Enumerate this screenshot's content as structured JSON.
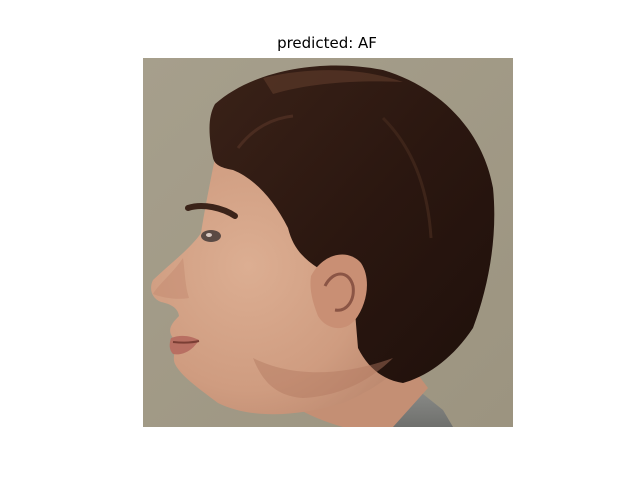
{
  "figure": {
    "title": "predicted: AF"
  },
  "photo": {
    "subject": "face-profile",
    "colors": {
      "background": "#a59c88",
      "skin": "#d2a185",
      "skin_shadow": "#b47a61",
      "hair": "#2a1710",
      "hair_highlight": "#4b2d21",
      "shirt": "#7e7f7c"
    }
  }
}
